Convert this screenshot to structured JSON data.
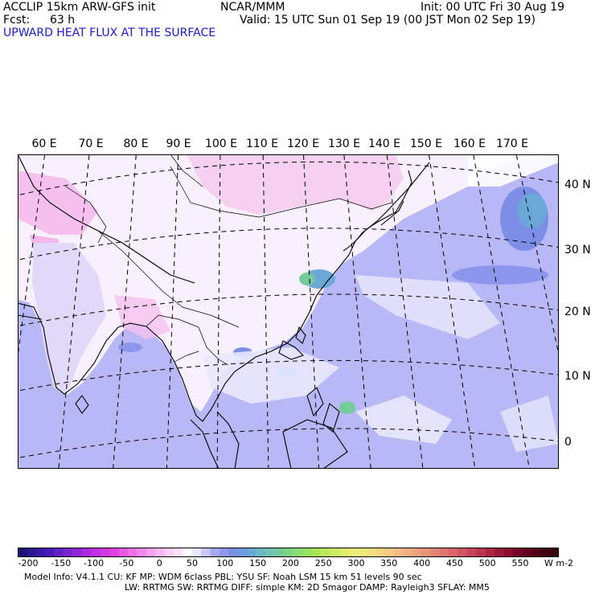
{
  "header": {
    "model": "ACCLIP 15km ARW-GFS init",
    "fcst_label": "Fcst:",
    "fcst_value": "63 h",
    "org": "NCAR/MMM",
    "init": "Init: 00 UTC Fri 30 Aug 19",
    "valid": "Valid: 15 UTC Sun 01 Sep 19 (00 JST Mon 02 Sep 19)",
    "field": "UPWARD HEAT FLUX AT THE SURFACE"
  },
  "lon_labels": [
    "60 E",
    "70 E",
    "80 E",
    "90 E",
    "100 E",
    "110 E",
    "120 E",
    "130 E",
    "140 E",
    "150 E",
    "160 E",
    "170 E"
  ],
  "lat_labels": [
    "40 N",
    "30 N",
    "20 N",
    "10 N",
    "0"
  ],
  "colorbar": {
    "labels": [
      "-200",
      "-150",
      "-100",
      "-50",
      "0",
      "50",
      "100",
      "150",
      "200",
      "250",
      "300",
      "350",
      "400",
      "450",
      "500",
      "550"
    ],
    "unit": "W m-2",
    "colors": [
      "#1f0f78",
      "#2a1490",
      "#3a18a8",
      "#4c1ab8",
      "#6020c8",
      "#7826d0",
      "#9028d8",
      "#a82ce0",
      "#c030e0",
      "#d038e0",
      "#e040e0",
      "#ea58e6",
      "#f070ea",
      "#f488ee",
      "#f8a0f2",
      "#fab8f4",
      "#fccef8",
      "#fee0fa",
      "#ffffff",
      "#e8e8ff",
      "#c8c8fa",
      "#a8a8f4",
      "#9098ee",
      "#7c8ee6",
      "#6e9ae0",
      "#6aa8d8",
      "#6cb8c8",
      "#70c4b4",
      "#74cc9c",
      "#7cd484",
      "#88dc70",
      "#98e060",
      "#a8e458",
      "#bce85c",
      "#cceb64",
      "#dcee6c",
      "#e8ef74",
      "#f0ec7c",
      "#f4e07c",
      "#f6d47e",
      "#f6c880",
      "#f4bc82",
      "#f2b080",
      "#eea27c",
      "#ea9478",
      "#e68474",
      "#e07470",
      "#da646a",
      "#d25462",
      "#c8445a",
      "#bc3450",
      "#ac2646",
      "#9c1a3c",
      "#8a1032",
      "#780828",
      "#660420",
      "#540018",
      "#440012",
      "#38000e"
    ]
  },
  "model_info": {
    "line1": "Model Info: V4.1.1     CU: KF          MP: WDM 6class   PBL: YSU          SF: Noah LSM     15 km    51 levels    90 sec",
    "line2": "LW: RRTMG     SW: RRTMG   DIFF: simple KM: 2D Smagor DAMP: Rayleigh3   SFLAY: MM5"
  }
}
